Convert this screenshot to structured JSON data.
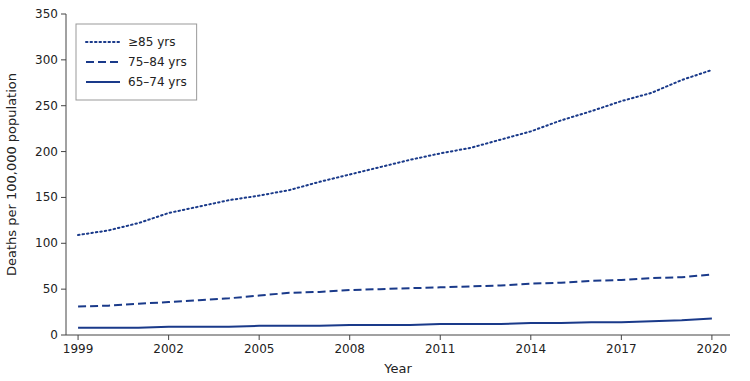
{
  "chart_data": {
    "type": "line",
    "x": [
      1999,
      2000,
      2001,
      2002,
      2003,
      2004,
      2005,
      2006,
      2007,
      2008,
      2009,
      2010,
      2011,
      2012,
      2013,
      2014,
      2015,
      2016,
      2017,
      2018,
      2019,
      2020
    ],
    "series": [
      {
        "name": "≥85 yrs",
        "color": "#1a3a8a",
        "line_style": "dotted",
        "values": [
          109,
          114,
          122,
          133,
          140,
          147,
          152,
          158,
          167,
          175,
          183,
          191,
          198,
          204,
          213,
          222,
          234,
          244,
          255,
          264,
          278,
          289
        ]
      },
      {
        "name": "75–84 yrs",
        "color": "#1a3a8a",
        "line_style": "dashed",
        "values": [
          31,
          32,
          34,
          36,
          38,
          40,
          43,
          46,
          47,
          49,
          50,
          51,
          52,
          53,
          54,
          56,
          57,
          59,
          60,
          62,
          63,
          66
        ]
      },
      {
        "name": "65–74 yrs",
        "color": "#1a3a8a",
        "line_style": "solid",
        "values": [
          8,
          8,
          8,
          9,
          9,
          9,
          10,
          10,
          10,
          11,
          11,
          11,
          12,
          12,
          12,
          13,
          13,
          14,
          14,
          15,
          16,
          18
        ]
      }
    ],
    "xlabel": "Year",
    "ylabel": "Deaths per 100,000 population",
    "xlim": [
      1998.6,
      2020.6
    ],
    "xticks": [
      1999,
      2002,
      2005,
      2008,
      2011,
      2014,
      2017,
      2020
    ],
    "ylim": [
      0,
      350
    ],
    "yticks": [
      0,
      50,
      100,
      150,
      200,
      250,
      300,
      350
    ],
    "legend": "upper left",
    "grid": false
  }
}
